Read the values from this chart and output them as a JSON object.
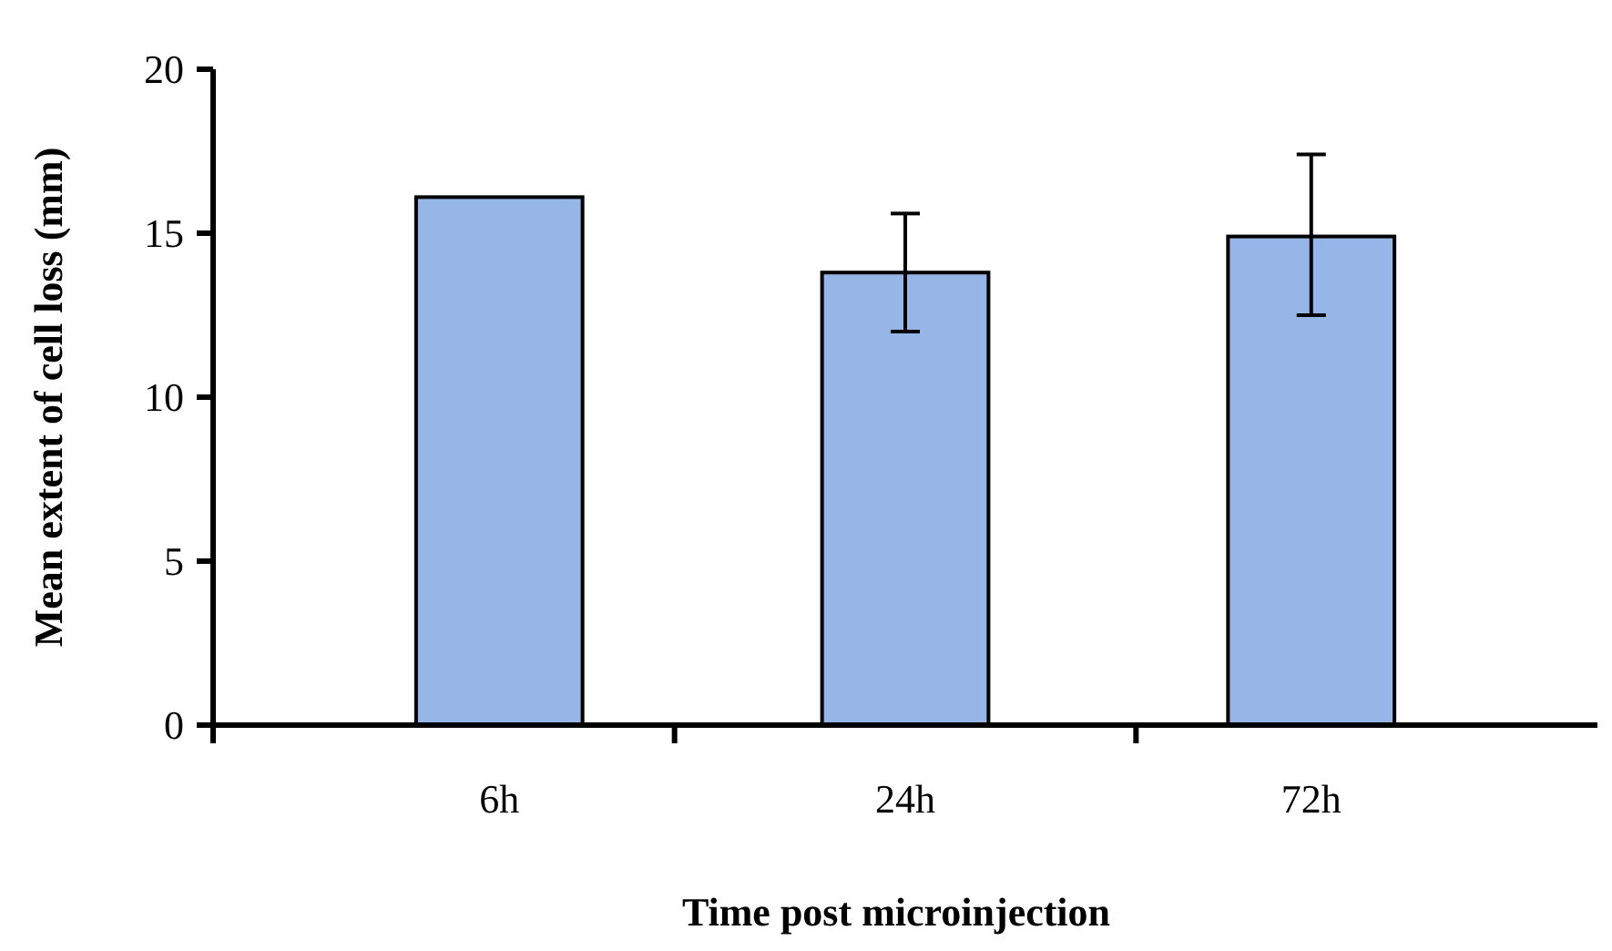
{
  "chart_data": {
    "type": "bar",
    "xlabel": "Time post microinjection",
    "ylabel": "Mean extent of cell loss (mm)",
    "categories": [
      "6h",
      "24h",
      "72h"
    ],
    "values": [
      16.1,
      13.8,
      14.9
    ],
    "errors": [
      null,
      [
        12.0,
        15.6
      ],
      [
        12.5,
        17.4
      ]
    ],
    "color": "#96b6e8",
    "ylim": [
      0,
      20
    ],
    "yticks": [
      0,
      5,
      10,
      15,
      20
    ],
    "grid": false
  }
}
